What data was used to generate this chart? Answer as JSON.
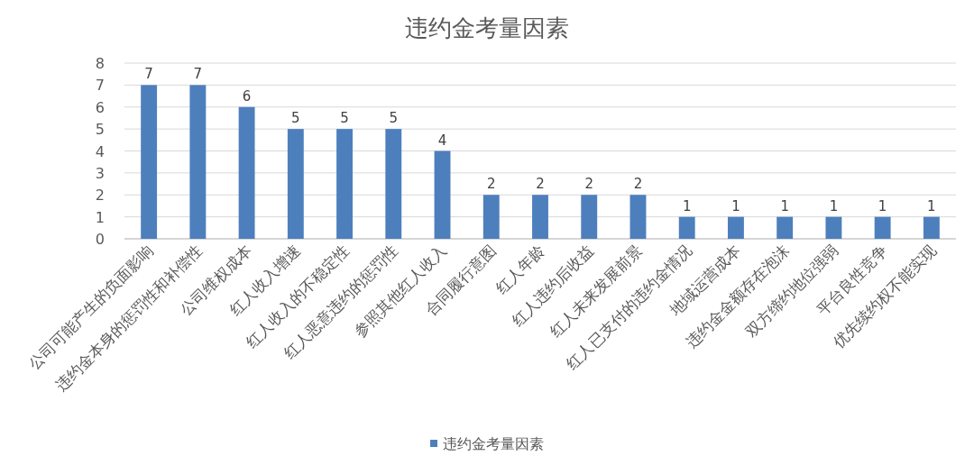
{
  "chart_data": {
    "type": "bar",
    "title": "违约金考量因素",
    "categories": [
      "公司可能产生的负面影响",
      "违约金本身的惩罚性和补偿性",
      "公司维权成本",
      "红人收入增速",
      "红人收入的不稳定性",
      "红人恶意违约的惩罚性",
      "参照其他红人收入",
      "合同履行意图",
      "红人年龄",
      "红人违约后收益",
      "红人未来发展前景",
      "红人已支付的违约金情况",
      "地域运营成本",
      "违约金金额存在泡沫",
      "双方缔约地位强弱",
      "平台良性竞争",
      "优先续约权不能实现"
    ],
    "series": [
      {
        "name": "违约金考量因素",
        "color": "#4e7fbd",
        "values": [
          7,
          7,
          6,
          5,
          5,
          5,
          4,
          2,
          2,
          2,
          2,
          1,
          1,
          1,
          1,
          1,
          1
        ]
      }
    ],
    "ylim": [
      0,
      8
    ],
    "yticks": [
      0,
      1,
      2,
      3,
      4,
      5,
      6,
      7,
      8
    ],
    "grid": "y",
    "legend": "bottom",
    "data_labels": true
  }
}
